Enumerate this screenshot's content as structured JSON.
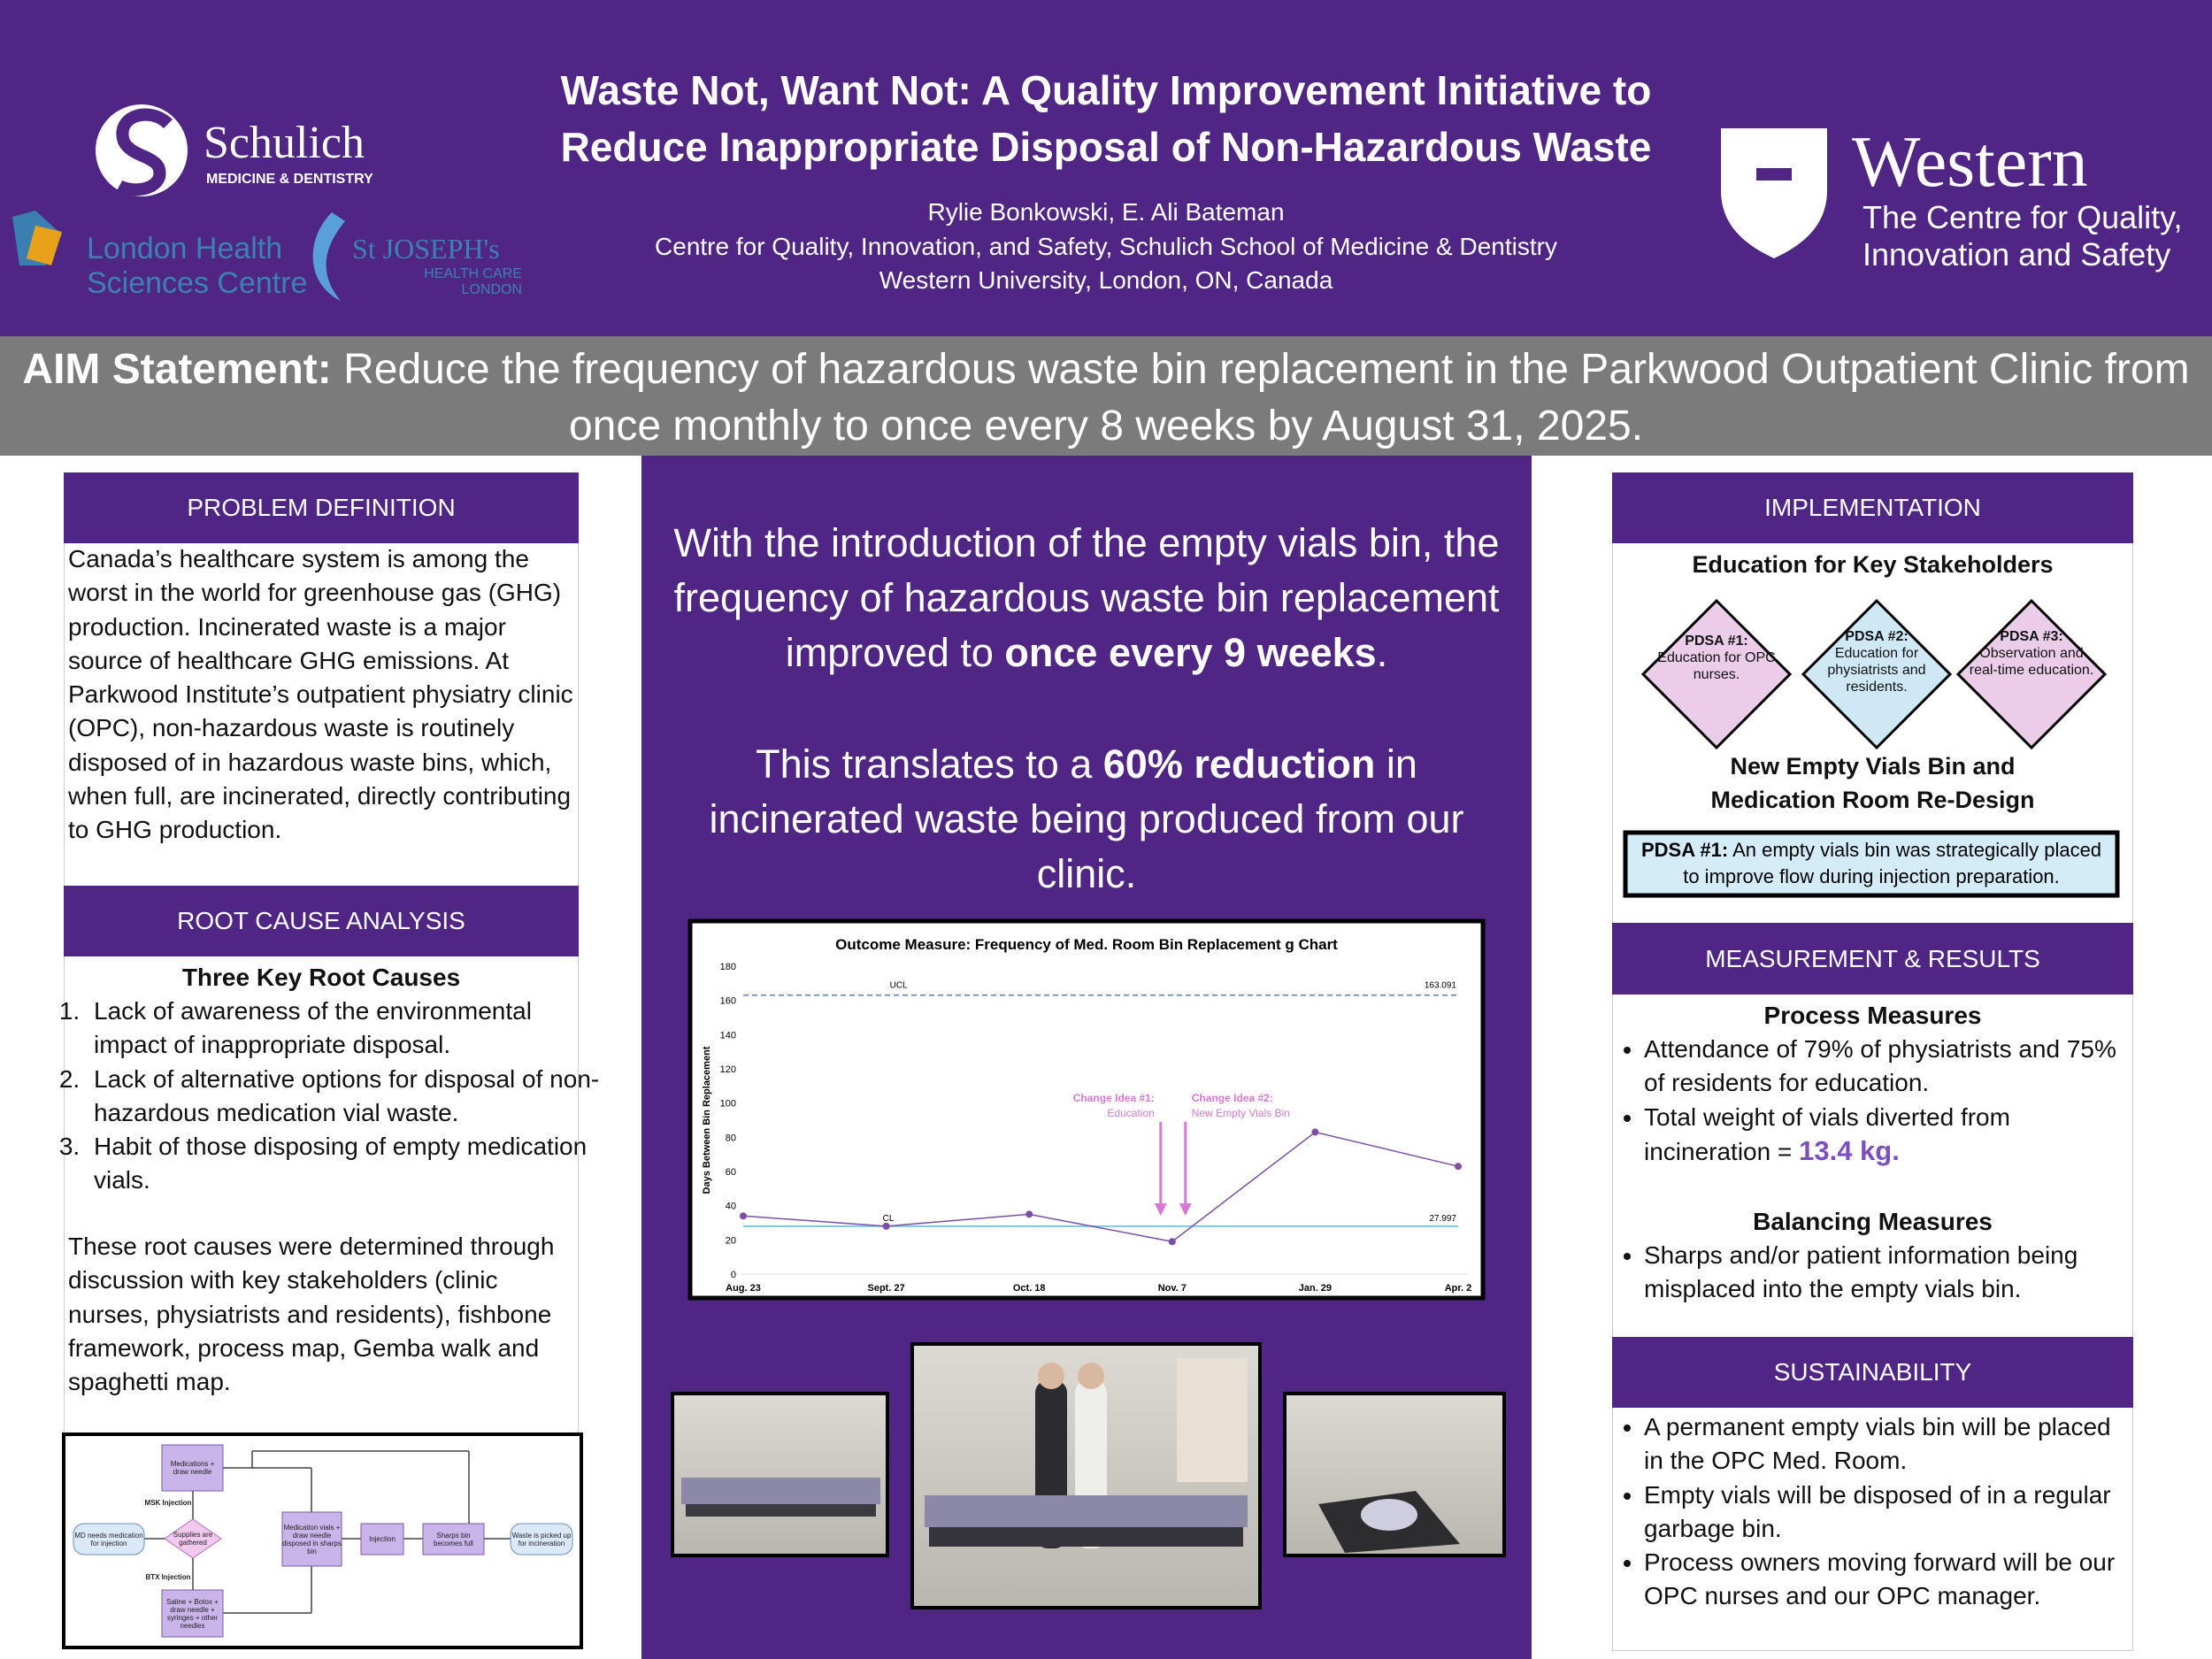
{
  "header": {
    "title_line1": "Waste Not, Want Not: A Quality Improvement Initiative to",
    "title_line2": "Reduce Inappropriate Disposal of Non-Hazardous Waste",
    "authors": "Rylie Bonkowski, E. Ali Bateman",
    "affiliation_line1": "Centre for Quality, Innovation, and Safety, Schulich School of Medicine & Dentistry",
    "affiliation_line2": "Western University, London, ON, Canada"
  },
  "logos": {
    "schulich": "Schulich",
    "schulich_sub": "MEDICINE & DENTISTRY",
    "lhsc_line1": "London Health",
    "lhsc_line2": "Sciences Centre",
    "sjhc_line1": "St JOSEPH's",
    "sjhc_line2": "HEALTH CARE",
    "sjhc_line3": "LONDON",
    "western": "Western",
    "western_line1": "The Centre for Quality,",
    "western_line2": "Innovation and Safety"
  },
  "aim": {
    "label": "AIM Statement:",
    "text": "Reduce the frequency of hazardous waste bin replacement in the Parkwood Outpatient Clinic from once monthly to once every 8 weeks by August 31, 2025."
  },
  "problem_definition": {
    "heading": "PROBLEM DEFINITION",
    "body": "Canada’s healthcare system is among the worst in the world for greenhouse gas (GHG) production. Incinerated waste is a major source of healthcare GHG emissions. At Parkwood Institute’s outpatient physiatry clinic (OPC), non-hazardous waste is routinely disposed of in hazardous waste bins, which, when full, are incinerated, directly contributing to GHG production."
  },
  "root_cause": {
    "heading": "ROOT CAUSE ANALYSIS",
    "subheading": "Three Key Root Causes",
    "causes": [
      "Lack of awareness of the environmental impact of inappropriate disposal.",
      "Lack of alternative options for disposal of non-hazardous medication vial waste.",
      "Habit of those disposing of empty medication vials."
    ],
    "summary": "These root causes were determined through discussion with key stakeholders (clinic nurses, physiatrists and residents), fishbone framework, process map, Gemba walk and spaghetti map."
  },
  "flowchart": {
    "nodes": [
      "MD needs medication for injection",
      "Supplies are gathered",
      "Medications + draw needle",
      "Saline + Botox + draw needle + syringes + other needles",
      "Medication vials + draw needle disposed in sharps bin",
      "Injection",
      "Sharps bin becomes full",
      "Waste is picked up for incineration"
    ],
    "branch_labels": [
      "MSK Injection",
      "BTX Injection"
    ]
  },
  "center": {
    "statement1": [
      "With the introduction of the empty vials bin, the frequency of hazardous waste bin replacement improved to ",
      "once every 9 weeks",
      "."
    ],
    "statement2": [
      "This translates to a ",
      "60% reduction",
      " in incinerated waste being produced from our clinic."
    ]
  },
  "chart_data": {
    "type": "line",
    "title": "Outcome Measure: Frequency of Med. Room Bin Replacement g Chart",
    "y_label": "Days Between Bin Replacement",
    "categories": [
      "Aug. 23",
      "Sept. 27",
      "Oct. 18",
      "Nov. 7",
      "Jan. 29",
      "Apr. 2"
    ],
    "series": [
      {
        "name": "Days Between Bin Replacement",
        "color": "#7b4fa8",
        "values": [
          34,
          28,
          35,
          19,
          83,
          63
        ]
      }
    ],
    "ylim": [
      0,
      180
    ],
    "yticks": [
      0,
      20,
      40,
      60,
      80,
      100,
      120,
      140,
      160,
      180
    ],
    "ucl": {
      "label": "UCL",
      "value": 163.091
    },
    "cl": {
      "label": "CL",
      "value": 27.997
    },
    "annotations": [
      {
        "line1": "Change Idea #1:",
        "line2": "Education"
      },
      {
        "line1": "Change Idea #2:",
        "line2": "New Empty Vials Bin"
      }
    ]
  },
  "implementation": {
    "heading": "IMPLEMENTATION",
    "subheading1": "Education for Key Stakeholders",
    "pdsa": [
      {
        "label": "PDSA #1:",
        "text": "Education for OPC nurses."
      },
      {
        "label": "PDSA #2:",
        "text": "Education for physiatrists and residents."
      },
      {
        "label": "PDSA #3:",
        "text": "Observation and real-time education."
      }
    ],
    "subheading2_line1": "New Empty Vials Bin and",
    "subheading2_line2": "Medication Room Re-Design",
    "box_label": "PDSA #1:",
    "box_text": "An empty vials bin was strategically placed to improve flow during injection preparation."
  },
  "measurement": {
    "heading": "MEASUREMENT & RESULTS",
    "process_heading": "Process Measures",
    "process_items": [
      "Attendance of 79% of physiatrists and 75% of residents for education.",
      "Total weight of vials diverted from incineration = "
    ],
    "weight": "13.4 kg.",
    "balancing_heading": "Balancing Measures",
    "balancing_items": [
      "Sharps and/or patient information being misplaced into the empty vials bin."
    ]
  },
  "sustainability": {
    "heading": "SUSTAINABILITY",
    "items": [
      "A permanent empty vials bin will be placed in the OPC Med. Room.",
      "Empty vials will be disposed of in a regular garbage bin.",
      "Process owners moving forward will be our OPC nurses and our OPC manager."
    ]
  }
}
